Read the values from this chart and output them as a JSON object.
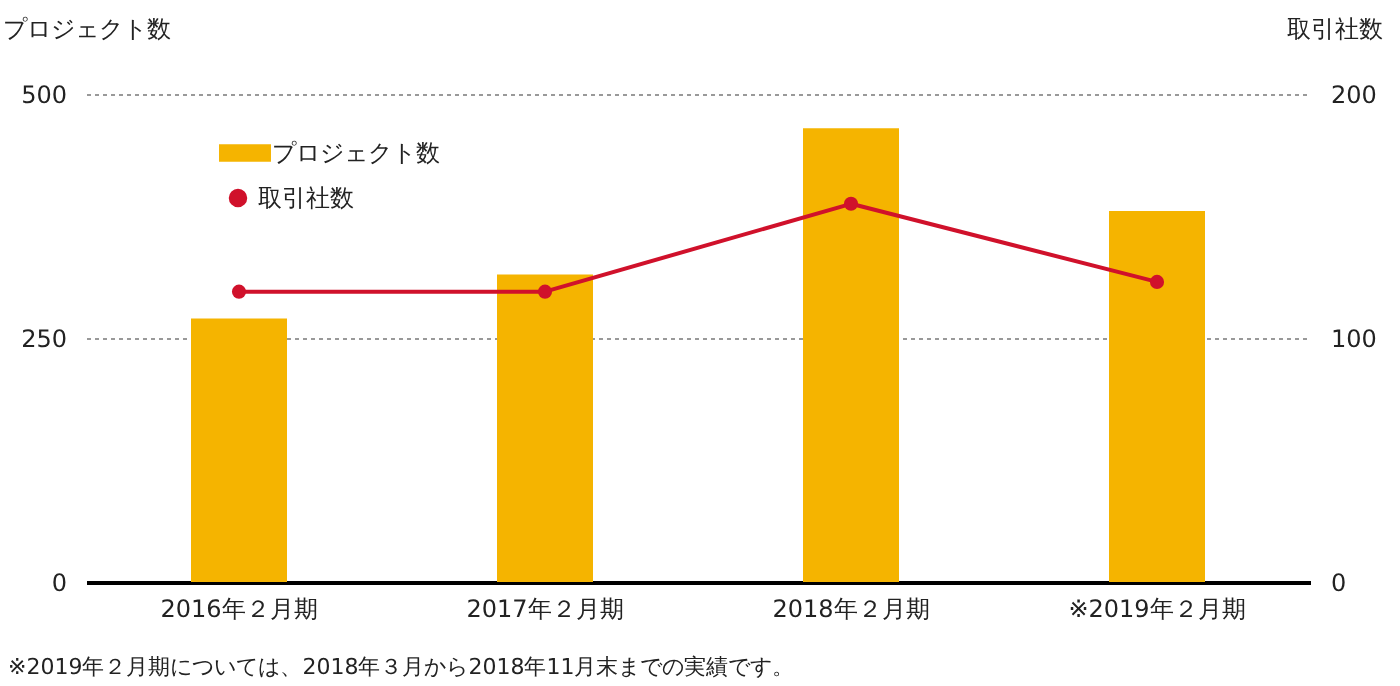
{
  "chart_data": {
    "type": "bar",
    "categories": [
      "2016年２月期",
      "2017年２月期",
      "2018年２月期",
      "※2019年２月期"
    ],
    "series": [
      {
        "name": "プロジェクト数",
        "color": "#f5b400",
        "values": [
          270,
          315,
          465,
          380
        ]
      },
      {
        "name": "取引社数",
        "type": "line",
        "axis": "y2",
        "color": "#d0112b",
        "values": [
          119,
          119,
          155,
          123
        ]
      }
    ],
    "ylabel": "プロジェクト数",
    "y2label": "取引社数",
    "ylim": [
      0,
      500
    ],
    "yticks": [
      0,
      250,
      500
    ],
    "y2lim": [
      0,
      200
    ],
    "y2ticks": [
      0,
      100,
      200
    ],
    "grid": "y",
    "legend": "top left",
    "marker": "circle",
    "annotations": [
      "※2019年２月期については、2018年３月から2018年11月末までの実績です。"
    ]
  }
}
